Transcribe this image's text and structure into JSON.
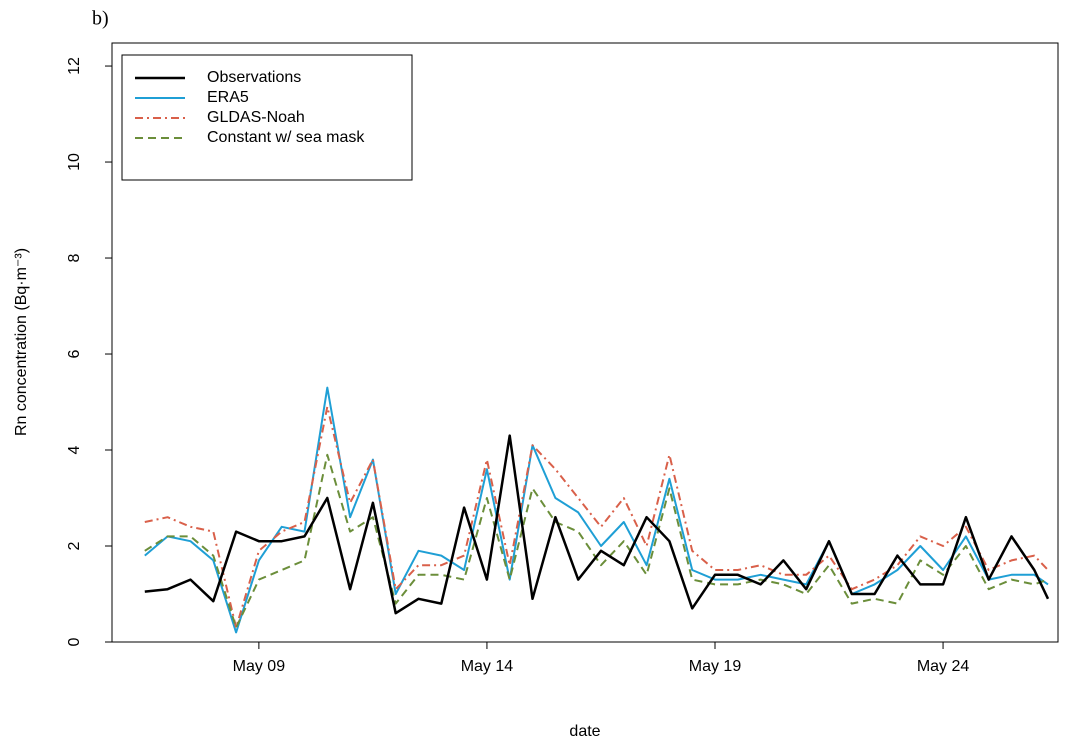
{
  "chart_data": {
    "type": "line",
    "panel_label": "b)",
    "xlabel": "date",
    "ylabel": "Rn concentration (Bq·m⁻³)",
    "x": [
      6.5,
      7,
      7.5,
      8,
      8.5,
      9,
      9.5,
      10,
      10.5,
      11,
      11.5,
      12,
      12.5,
      13,
      13.5,
      14,
      14.5,
      15,
      15.5,
      16,
      16.5,
      17,
      17.5,
      18,
      18.5,
      19,
      19.5,
      20,
      20.5,
      21,
      21.5,
      22,
      22.5,
      23,
      23.5,
      24,
      24.5,
      25,
      25.5,
      26,
      26.3
    ],
    "series": [
      {
        "name": "Observations",
        "color": "#000000",
        "dash": "solid",
        "width": 2.5,
        "values": [
          1.05,
          1.1,
          1.3,
          0.85,
          2.3,
          2.1,
          2.1,
          2.2,
          3.0,
          1.1,
          2.9,
          0.6,
          0.9,
          0.8,
          2.8,
          1.3,
          4.3,
          0.9,
          2.6,
          1.3,
          1.9,
          1.6,
          2.6,
          2.1,
          0.7,
          1.4,
          1.4,
          1.2,
          1.7,
          1.1,
          2.1,
          1.0,
          1.0,
          1.8,
          1.2,
          1.2,
          2.6,
          1.3,
          2.2,
          1.5,
          0.9
        ]
      },
      {
        "name": "ERA5",
        "color": "#1f9fd5",
        "dash": "solid",
        "width": 2,
        "values": [
          1.8,
          2.2,
          2.1,
          1.7,
          0.2,
          1.7,
          2.4,
          2.3,
          5.3,
          2.6,
          3.8,
          1.0,
          1.9,
          1.8,
          1.5,
          3.6,
          1.3,
          4.1,
          3.0,
          2.7,
          2.0,
          2.5,
          1.6,
          3.4,
          1.5,
          1.3,
          1.3,
          1.4,
          1.3,
          1.2,
          2.1,
          1.0,
          1.2,
          1.5,
          2.0,
          1.5,
          2.2,
          1.3,
          1.4,
          1.4,
          1.2
        ]
      },
      {
        "name": "GLDAS-Noah",
        "color": "#d9604a",
        "dash": "dashdot",
        "width": 2,
        "values": [
          2.5,
          2.6,
          2.4,
          2.3,
          0.3,
          1.9,
          2.3,
          2.5,
          4.9,
          2.9,
          3.8,
          1.1,
          1.6,
          1.6,
          1.8,
          3.8,
          1.6,
          4.1,
          3.6,
          3.0,
          2.4,
          3.0,
          2.0,
          3.9,
          1.9,
          1.5,
          1.5,
          1.6,
          1.4,
          1.4,
          1.8,
          1.1,
          1.3,
          1.6,
          2.2,
          2.0,
          2.4,
          1.5,
          1.7,
          1.8,
          1.5
        ]
      },
      {
        "name": "Constant w/ sea mask",
        "color": "#6b8e3a",
        "dash": "dashed",
        "width": 2,
        "values": [
          1.9,
          2.2,
          2.2,
          1.8,
          0.3,
          1.3,
          1.5,
          1.7,
          3.9,
          2.3,
          2.6,
          0.8,
          1.4,
          1.4,
          1.3,
          3.0,
          1.3,
          3.2,
          2.5,
          2.3,
          1.6,
          2.1,
          1.4,
          3.2,
          1.3,
          1.2,
          1.2,
          1.3,
          1.2,
          1.0,
          1.6,
          0.8,
          0.9,
          0.8,
          1.7,
          1.4,
          2.0,
          1.1,
          1.3,
          1.2,
          1.3
        ]
      }
    ],
    "xlim": [
      5.78,
      26.52
    ],
    "xticks": [
      {
        "value": 9,
        "label": "May 09"
      },
      {
        "value": 14,
        "label": "May 14"
      },
      {
        "value": 19,
        "label": "May 19"
      },
      {
        "value": 24,
        "label": "May 24"
      }
    ],
    "ylim": [
      0,
      12.48
    ],
    "yticks": [
      0,
      2,
      4,
      6,
      8,
      10,
      12
    ],
    "legend": "top-left",
    "grid": false
  }
}
